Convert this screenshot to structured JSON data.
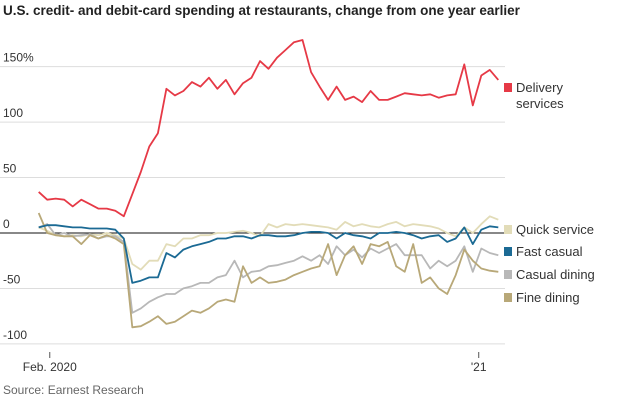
{
  "chart_data": {
    "type": "line",
    "title": "U.S. credit- and debit-card spending at restaurants, change from one year earlier",
    "source": "Source: Earnest Research",
    "x": [
      0,
      1,
      2,
      3,
      4,
      5,
      6,
      7,
      8,
      9,
      10,
      11,
      12,
      13,
      14,
      15,
      16,
      17,
      18,
      19,
      20,
      21,
      22,
      23,
      24,
      25,
      26,
      27,
      28,
      29,
      30,
      31,
      32,
      33,
      34,
      35,
      36,
      37,
      38,
      39,
      40,
      41,
      42,
      43,
      44,
      45,
      46,
      47,
      48,
      49,
      50,
      51,
      52,
      53,
      54
    ],
    "xlim": [
      -0.2,
      54.2
    ],
    "xticks": [
      {
        "value": 1.3,
        "label": "Feb. 2020"
      },
      {
        "value": 51.7,
        "label": "'21"
      }
    ],
    "ylim": [
      -110,
      183
    ],
    "yticks": [
      {
        "value": 150,
        "label": "150%"
      },
      100,
      50,
      0,
      -50,
      -100
    ],
    "grid": true,
    "series": [
      {
        "name": "Delivery services",
        "color": "#e63946",
        "values": [
          37,
          30,
          31,
          30,
          24,
          30,
          26,
          22,
          22,
          20,
          15,
          35,
          55,
          78,
          90,
          130,
          124,
          128,
          136,
          132,
          140,
          130,
          138,
          125,
          135,
          140,
          155,
          148,
          158,
          165,
          172,
          174,
          145,
          132,
          120,
          132,
          120,
          123,
          118,
          128,
          120,
          120,
          123,
          126,
          125,
          124,
          125,
          122,
          124,
          125,
          152,
          115,
          142,
          147,
          138
        ]
      },
      {
        "name": "Quick service",
        "color": "#e2dcb8",
        "values": [
          5,
          2,
          -2,
          -3,
          -2,
          -3,
          -1,
          -2,
          0,
          -2,
          -5,
          -28,
          -33,
          -25,
          -25,
          -10,
          -12,
          -5,
          -5,
          -2,
          -2,
          0,
          0,
          1,
          2,
          0,
          -3,
          8,
          5,
          8,
          7,
          8,
          7,
          6,
          5,
          3,
          10,
          6,
          8,
          6,
          5,
          8,
          10,
          6,
          8,
          7,
          6,
          4,
          0,
          -3,
          5,
          0,
          8,
          15,
          12
        ]
      },
      {
        "name": "Fast casual",
        "color": "#1b6a94",
        "values": [
          5,
          7,
          7,
          6,
          5,
          5,
          4,
          4,
          4,
          3,
          -5,
          -45,
          -43,
          -40,
          -40,
          -18,
          -22,
          -15,
          -12,
          -10,
          -8,
          -5,
          -5,
          -3,
          -3,
          -5,
          -2,
          -2,
          -3,
          -3,
          -2,
          0,
          1,
          1,
          0,
          -5,
          0,
          -2,
          -3,
          -5,
          0,
          0,
          1,
          0,
          -2,
          -5,
          -3,
          -2,
          -8,
          -5,
          5,
          -10,
          3,
          6,
          5
        ]
      },
      {
        "name": "Casual dining",
        "color": "#b8b8b8",
        "values": [
          5,
          8,
          -2,
          0,
          -3,
          -2,
          -1,
          -5,
          -3,
          -3,
          -8,
          -72,
          -68,
          -62,
          -58,
          -55,
          -55,
          -50,
          -48,
          -45,
          -45,
          -40,
          -38,
          -25,
          -40,
          -35,
          -34,
          -30,
          -29,
          -27,
          -25,
          -21,
          -25,
          -20,
          -28,
          -12,
          -20,
          -15,
          -22,
          -14,
          -18,
          -14,
          -10,
          -20,
          -20,
          -20,
          -32,
          -25,
          -30,
          -25,
          -12,
          -35,
          -14,
          -18,
          -20
        ]
      },
      {
        "name": "Fine dining",
        "color": "#b8a878",
        "values": [
          18,
          0,
          -2,
          -3,
          -3,
          -10,
          -2,
          -5,
          -2,
          -5,
          -10,
          -85,
          -84,
          -80,
          -75,
          -82,
          -80,
          -75,
          -70,
          -72,
          -68,
          -62,
          -60,
          -62,
          -30,
          -45,
          -40,
          -45,
          -44,
          -42,
          -38,
          -35,
          -32,
          -30,
          -10,
          -38,
          -20,
          -12,
          -28,
          -10,
          -12,
          -8,
          -30,
          -35,
          -10,
          -45,
          -40,
          -50,
          -55,
          -38,
          -15,
          -25,
          -32,
          -34,
          -35
        ]
      }
    ]
  }
}
